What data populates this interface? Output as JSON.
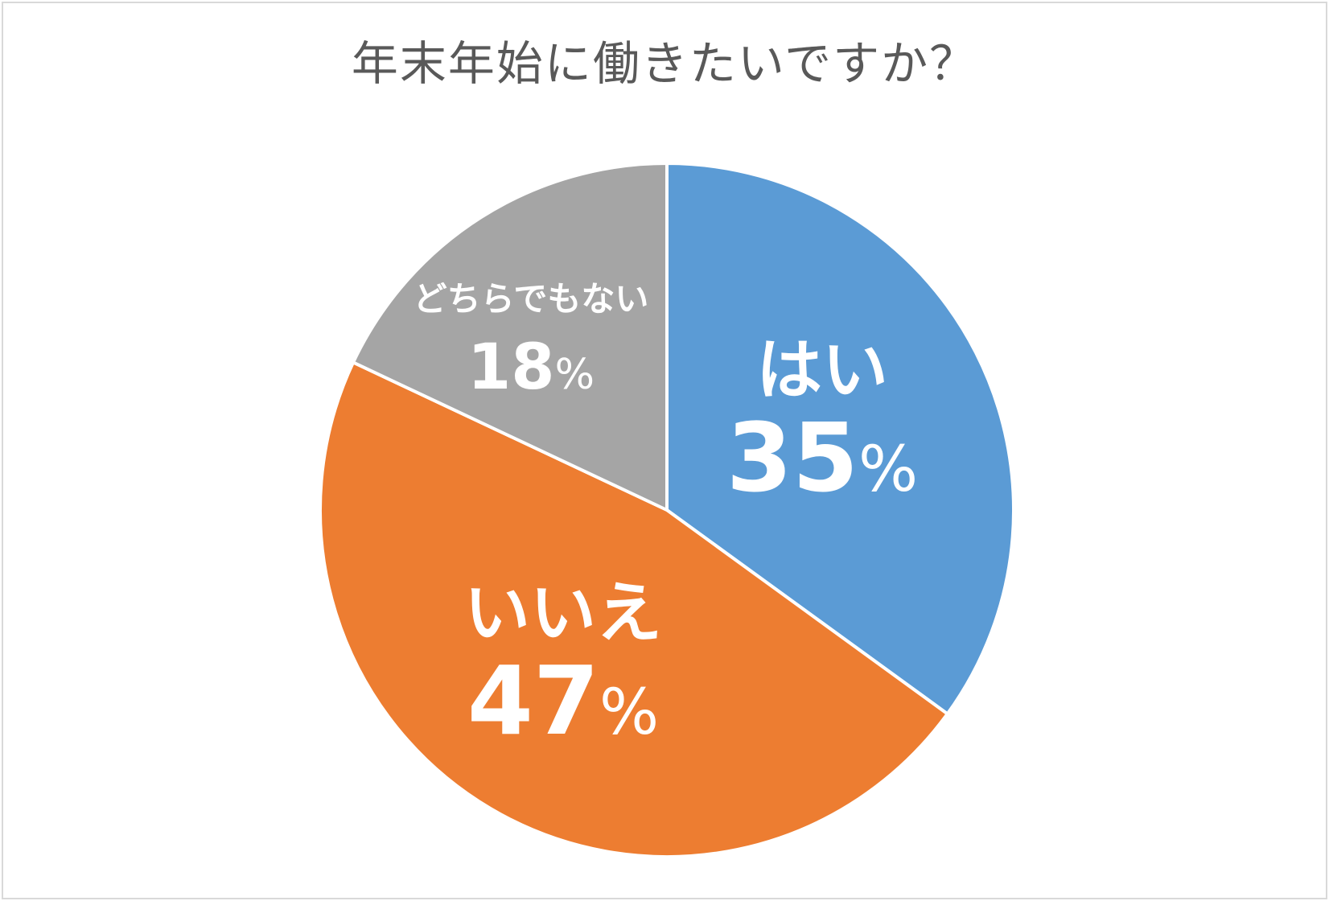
{
  "chart_data": {
    "type": "pie",
    "title": "年末年始に働きたいですか？",
    "slices": [
      {
        "label": "はい",
        "value": 35,
        "display": "35%",
        "color": "#5b9bd5"
      },
      {
        "label": "いいえ",
        "value": 47,
        "display": "47%",
        "color": "#ed7d31"
      },
      {
        "label": "どちらでもない",
        "value": 18,
        "display": "18%",
        "color": "#a5a5a5"
      }
    ],
    "start_angle": "12 o'clock",
    "direction": "clockwise",
    "legend": "none",
    "slice_border_color": "#ffffff"
  }
}
